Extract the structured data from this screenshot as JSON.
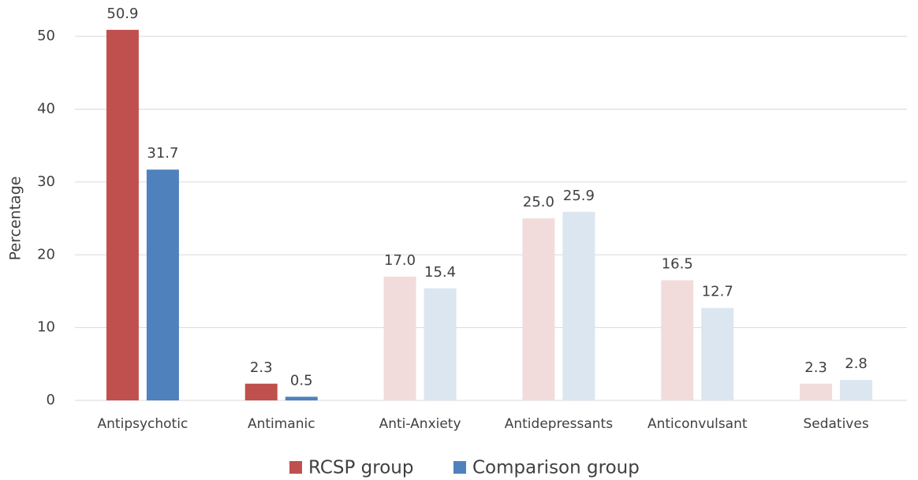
{
  "chart_data": {
    "type": "bar",
    "y_axis_label": "Percentage",
    "categories": [
      "Antipsychotic",
      "Antimanic",
      "Anti-Anxiety",
      "Antidepressants",
      "Anticonvulsant",
      "Sedatives"
    ],
    "series": [
      {
        "name": "RCSP group",
        "color": "#c0504d",
        "colors": [
          "#c0504d",
          "#c0504d",
          "#f2dcdb",
          "#f2dcdb",
          "#f2dcdb",
          "#f2dcdb"
        ],
        "values": [
          50.9,
          2.3,
          17,
          25,
          16.5,
          2.3
        ],
        "value_labels": [
          "50.9",
          "2.3",
          "17.0",
          "25.0",
          "16.5",
          "2.3"
        ]
      },
      {
        "name": "Comparison group",
        "color": "#4f81bd",
        "colors": [
          "#4f81bd",
          "#4f81bd",
          "#dce6f1",
          "#dce6f1",
          "#dce6f1",
          "#dce6f1"
        ],
        "values": [
          31.7,
          0.5,
          15.4,
          25.9,
          12.7,
          2.8
        ],
        "value_labels": [
          "31.7",
          "0.5",
          "15.4",
          "25.9",
          "12.7",
          "2.8"
        ]
      }
    ],
    "ylim": [
      0,
      55
    ],
    "yticks": [
      0,
      10,
      20,
      30,
      40,
      50
    ],
    "grid": true,
    "legend": "bottom"
  }
}
